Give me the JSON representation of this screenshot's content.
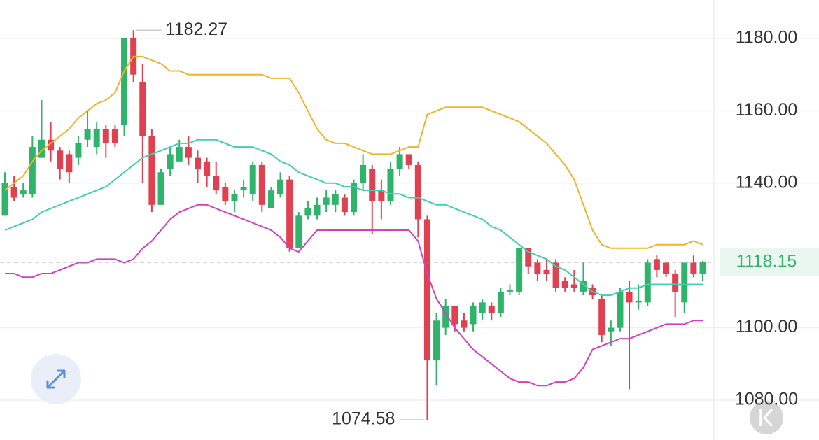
{
  "chart_data": {
    "type": "candlestick",
    "open": [
      1131,
      1139,
      1137,
      1137,
      1147,
      1152,
      1149,
      1148,
      1147,
      1152,
      1150,
      1155,
      1155,
      1156,
      1180,
      1168,
      1153,
      1134,
      1144,
      1146,
      1150,
      1147,
      1146,
      1142,
      1139,
      1135,
      1138,
      1137,
      1145,
      1133,
      1137,
      1141,
      1122,
      1131,
      1131,
      1134,
      1134,
      1136,
      1132,
      1140,
      1144,
      1138,
      1135,
      1144,
      1148,
      1145,
      1130,
      1091,
      1100,
      1106,
      1102,
      1101,
      1104,
      1106,
      1104,
      1110,
      1110,
      1122,
      1118,
      1116,
      1118,
      1113,
      1112,
      1110,
      1111,
      1108,
      1099,
      1100,
      1110,
      1107,
      1107,
      1119,
      1118,
      1115,
      1107,
      1118,
      1115
    ],
    "high": [
      1143,
      1142,
      1140,
      1153,
      1163,
      1157,
      1150,
      1149,
      1153,
      1160,
      1157,
      1156,
      1156,
      1180,
      1182.27,
      1173,
      1155,
      1144,
      1150,
      1152,
      1153,
      1149,
      1147,
      1146,
      1140,
      1138,
      1141,
      1146,
      1146,
      1139,
      1143,
      1142,
      1132,
      1135,
      1136,
      1138,
      1138,
      1137,
      1141,
      1148,
      1145,
      1141,
      1146,
      1150,
      1148,
      1146,
      1131,
      1104,
      1108,
      1106,
      1104,
      1107,
      1108,
      1107,
      1111,
      1112,
      1122,
      1122,
      1119,
      1119,
      1119,
      1114,
      1116,
      1118,
      1112,
      1109,
      1102,
      1111,
      1113,
      1112,
      1119,
      1120,
      1118,
      1116,
      1118,
      1120,
      1118.5
    ],
    "low": [
      1131,
      1135,
      1136,
      1136,
      1147,
      1146,
      1141,
      1140,
      1145,
      1150,
      1148,
      1147,
      1150,
      1153,
      1168,
      1140,
      1132,
      1134,
      1142,
      1146,
      1145,
      1140,
      1139,
      1137,
      1134,
      1132,
      1136,
      1135,
      1132,
      1133,
      1136,
      1121,
      1122,
      1130,
      1130,
      1132,
      1132,
      1131,
      1131,
      1138,
      1126,
      1130,
      1134,
      1142,
      1144,
      1125,
      1074.58,
      1084,
      1098,
      1099,
      1099,
      1099,
      1102,
      1102,
      1103,
      1109,
      1109,
      1115,
      1113,
      1113,
      1110,
      1110,
      1110,
      1109,
      1108,
      1096,
      1095,
      1099,
      1083,
      1105,
      1106,
      1114,
      1114,
      1103,
      1104,
      1114,
      1113
    ],
    "close": [
      1140,
      1136,
      1138,
      1150,
      1152,
      1149,
      1144,
      1143,
      1151,
      1155,
      1155,
      1151,
      1151,
      1180,
      1170,
      1153,
      1134,
      1143,
      1148,
      1150,
      1147,
      1144,
      1142,
      1138,
      1135,
      1137,
      1139,
      1145,
      1134,
      1138,
      1141,
      1122,
      1131,
      1133,
      1134,
      1136,
      1137,
      1132,
      1140,
      1145,
      1135,
      1135,
      1144,
      1148,
      1145,
      1130,
      1091,
      1102,
      1106,
      1101,
      1100,
      1106,
      1107,
      1104,
      1110,
      1110.5,
      1122,
      1117,
      1115,
      1115,
      1111,
      1111,
      1111,
      1113,
      1109,
      1098,
      1100,
      1110,
      1107,
      1107.3,
      1118,
      1116,
      1115,
      1110,
      1118,
      1115,
      1118.15
    ],
    "up_color": "#2eb46b",
    "down_color": "#e0404f",
    "bands": [
      {
        "color": "#f0b429",
        "values": [
          1138,
          1140,
          1142,
          1146,
          1149,
          1151,
          1153,
          1155,
          1158,
          1160,
          1162,
          1163,
          1165,
          1171,
          1175,
          1175,
          1174,
          1173,
          1171,
          1171,
          1170,
          1170,
          1170,
          1170,
          1170,
          1170,
          1170,
          1170,
          1170,
          1169,
          1169,
          1169,
          1165,
          1160,
          1155,
          1152,
          1151,
          1151,
          1150,
          1149,
          1148,
          1148,
          1148,
          1149,
          1150,
          1150,
          1159,
          1160,
          1161,
          1161,
          1161,
          1161,
          1161,
          1160,
          1159,
          1158,
          1157,
          1155,
          1153,
          1151,
          1148,
          1145,
          1141,
          1134,
          1127,
          1123,
          1122,
          1122,
          1122,
          1122,
          1122,
          1123,
          1123,
          1123,
          1123,
          1124,
          1123
        ]
      },
      {
        "color": "#3ed2ac",
        "values": [
          1127,
          1128,
          1129,
          1130,
          1132,
          1133,
          1134,
          1135,
          1136,
          1137,
          1138,
          1139,
          1141,
          1143,
          1145,
          1147,
          1148,
          1149,
          1150,
          1151,
          1151,
          1152,
          1152,
          1152,
          1151,
          1150,
          1150,
          1150,
          1149,
          1148,
          1146,
          1145,
          1143,
          1142,
          1141,
          1140,
          1140,
          1139,
          1139,
          1138,
          1138,
          1138,
          1137,
          1137,
          1136,
          1136,
          1135,
          1134,
          1134,
          1133,
          1132,
          1131,
          1130,
          1128,
          1127,
          1125,
          1123,
          1121,
          1120,
          1119,
          1117,
          1116,
          1114,
          1112,
          1110,
          1109,
          1109,
          1110,
          1111,
          1111,
          1112,
          1112,
          1112,
          1112,
          1112,
          1112,
          1112
        ]
      },
      {
        "color": "#d43fbf",
        "values": [
          1115,
          1115,
          1114,
          1114,
          1115,
          1115,
          1116,
          1117,
          1118,
          1118,
          1119,
          1119,
          1119,
          1118,
          1119,
          1122,
          1124,
          1127,
          1130,
          1132,
          1133,
          1134,
          1134,
          1133,
          1132,
          1131,
          1130,
          1129,
          1128,
          1127,
          1125,
          1122,
          1121,
          1124,
          1127,
          1127,
          1127,
          1127,
          1127,
          1127,
          1127,
          1127,
          1127,
          1127,
          1127,
          1124,
          1115,
          1108,
          1104,
          1100,
          1097,
          1094,
          1092,
          1090,
          1088,
          1086,
          1085,
          1085,
          1084,
          1084,
          1085,
          1085,
          1086,
          1089,
          1094,
          1095,
          1096,
          1097,
          1097,
          1098,
          1099,
          1100,
          1101,
          1101,
          1101,
          1102,
          1102
        ]
      }
    ],
    "ylim": [
      1068.97,
      1190.64
    ],
    "yticks": [
      {
        "value": 1080,
        "label": "1080.00"
      },
      {
        "value": 1100,
        "label": "1100.00"
      },
      {
        "value": 1140,
        "label": "1140.00"
      },
      {
        "value": 1160,
        "label": "1160.00"
      },
      {
        "value": 1180,
        "label": "1180.00"
      }
    ],
    "grid": true,
    "price_line_color": "#2eb46b"
  }
}
